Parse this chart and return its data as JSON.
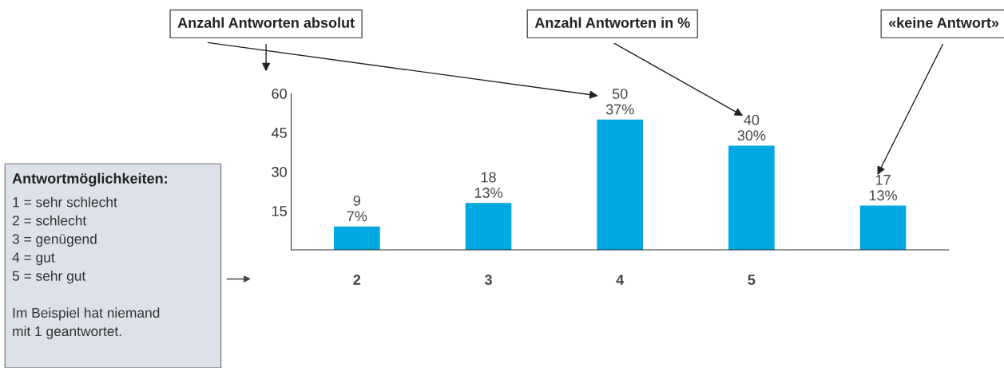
{
  "chart_data": {
    "type": "bar",
    "categories": [
      "2",
      "3",
      "4",
      "5",
      null
    ],
    "values": [
      9,
      18,
      50,
      40,
      17
    ],
    "value_labels": [
      "9\n7%",
      "18\n13%",
      "50\n37%",
      "40\n30%",
      "17\n13%"
    ],
    "color": "#00a8e1",
    "ylim": [
      0,
      60
    ],
    "yticks": [
      15,
      30,
      45,
      60
    ],
    "grid": false,
    "legend": false,
    "annotations": [
      "Anzahl Antworten absolut",
      "Anzahl Antworten in %",
      "«keine Antwort»",
      "Antwortmöglichkeiten:",
      "1 = sehr schlecht\n2 = schlecht\n3 = genügend\n4 = gut\n5 = sehr gut\n\nIm Beispiel hat niemand\nmit 1 geantwortet."
    ]
  }
}
